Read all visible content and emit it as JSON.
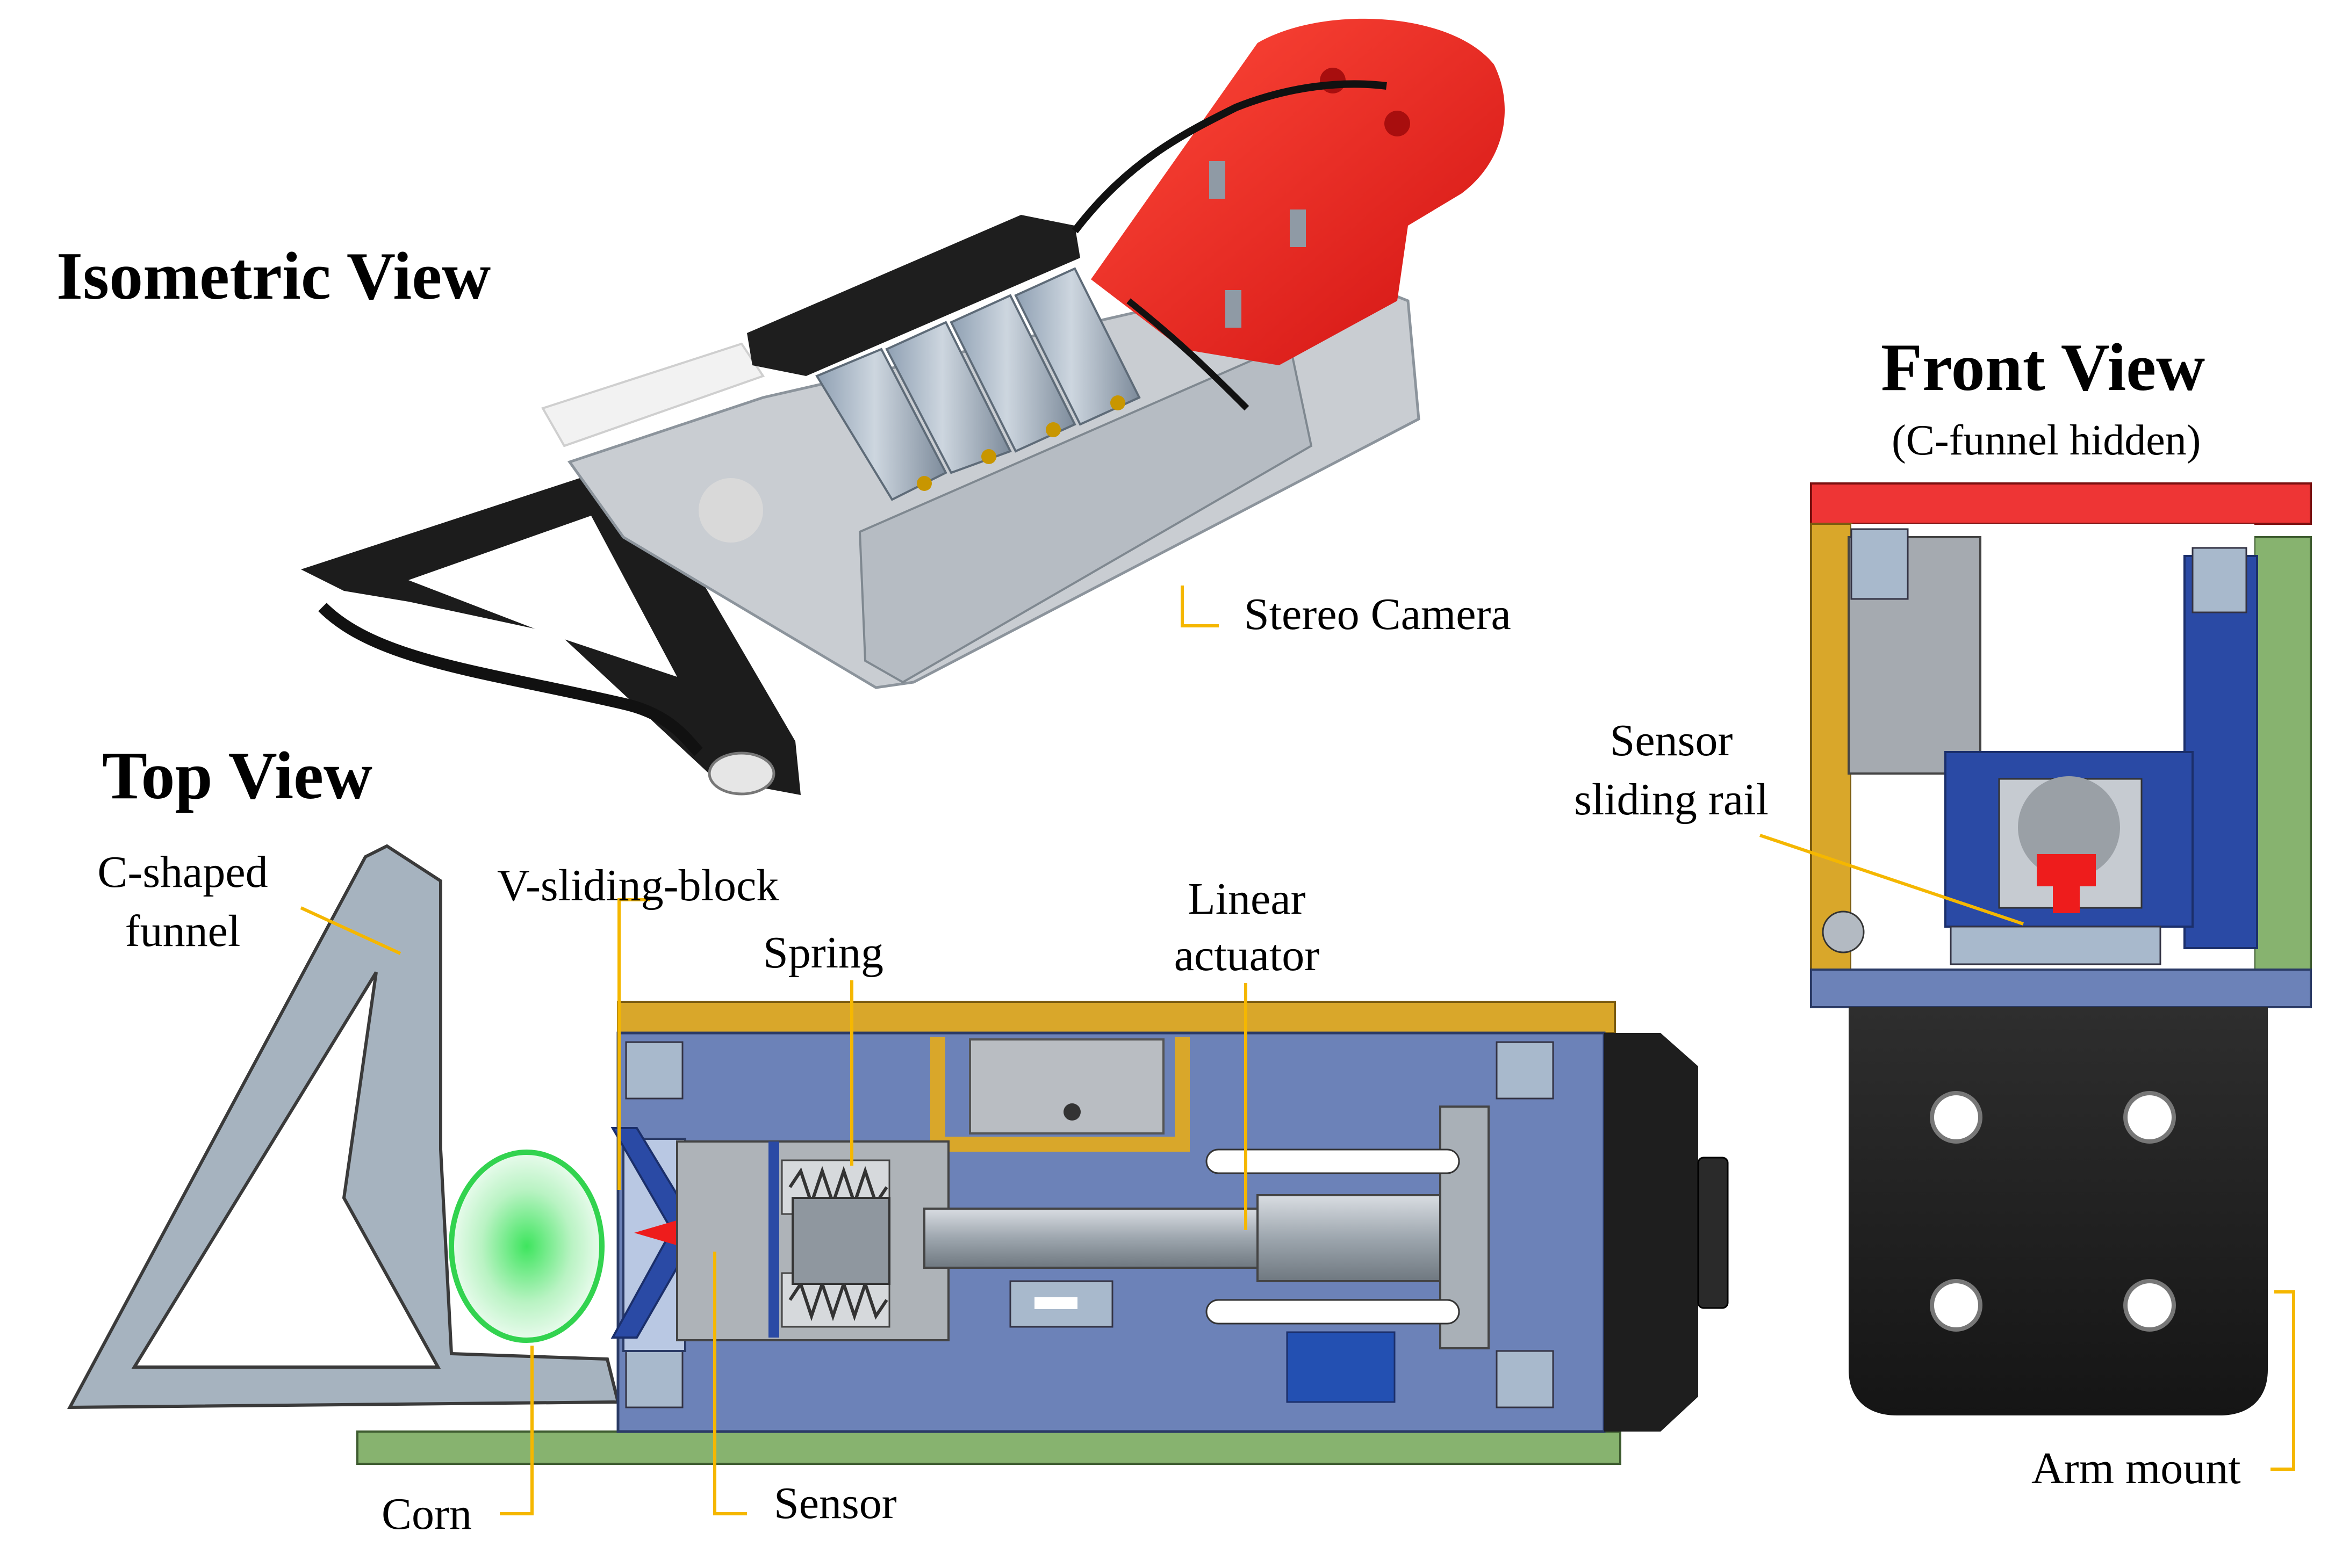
{
  "titles": {
    "isometric": "Isometric View",
    "top": "Top View",
    "front": "Front View",
    "front_note": "(C-funnel hidden)"
  },
  "labels": {
    "stereo_camera": "Stereo Camera",
    "c_funnel_1": "C-shaped",
    "c_funnel_2": "funnel",
    "v_block": "V-sliding-block",
    "spring": "Spring",
    "linear_1": "Linear",
    "linear_2": "actuator",
    "sensor_rail_1": "Sensor",
    "sensor_rail_2": "sliding rail",
    "corn": "Corn",
    "sensor": "Sensor",
    "arm_mount": "Arm mount"
  },
  "colors": {
    "leader": "#f5b700",
    "red_part": "#ee1c1c",
    "blue_block": "#2f55b0",
    "slate_block": "#6c82b8",
    "gold_rail": "#d9a72a",
    "green_pcb": "#87b36f",
    "funnel_gray": "#a6b3bf",
    "corn_green": "#3ee55e",
    "black_body": "#222222"
  }
}
